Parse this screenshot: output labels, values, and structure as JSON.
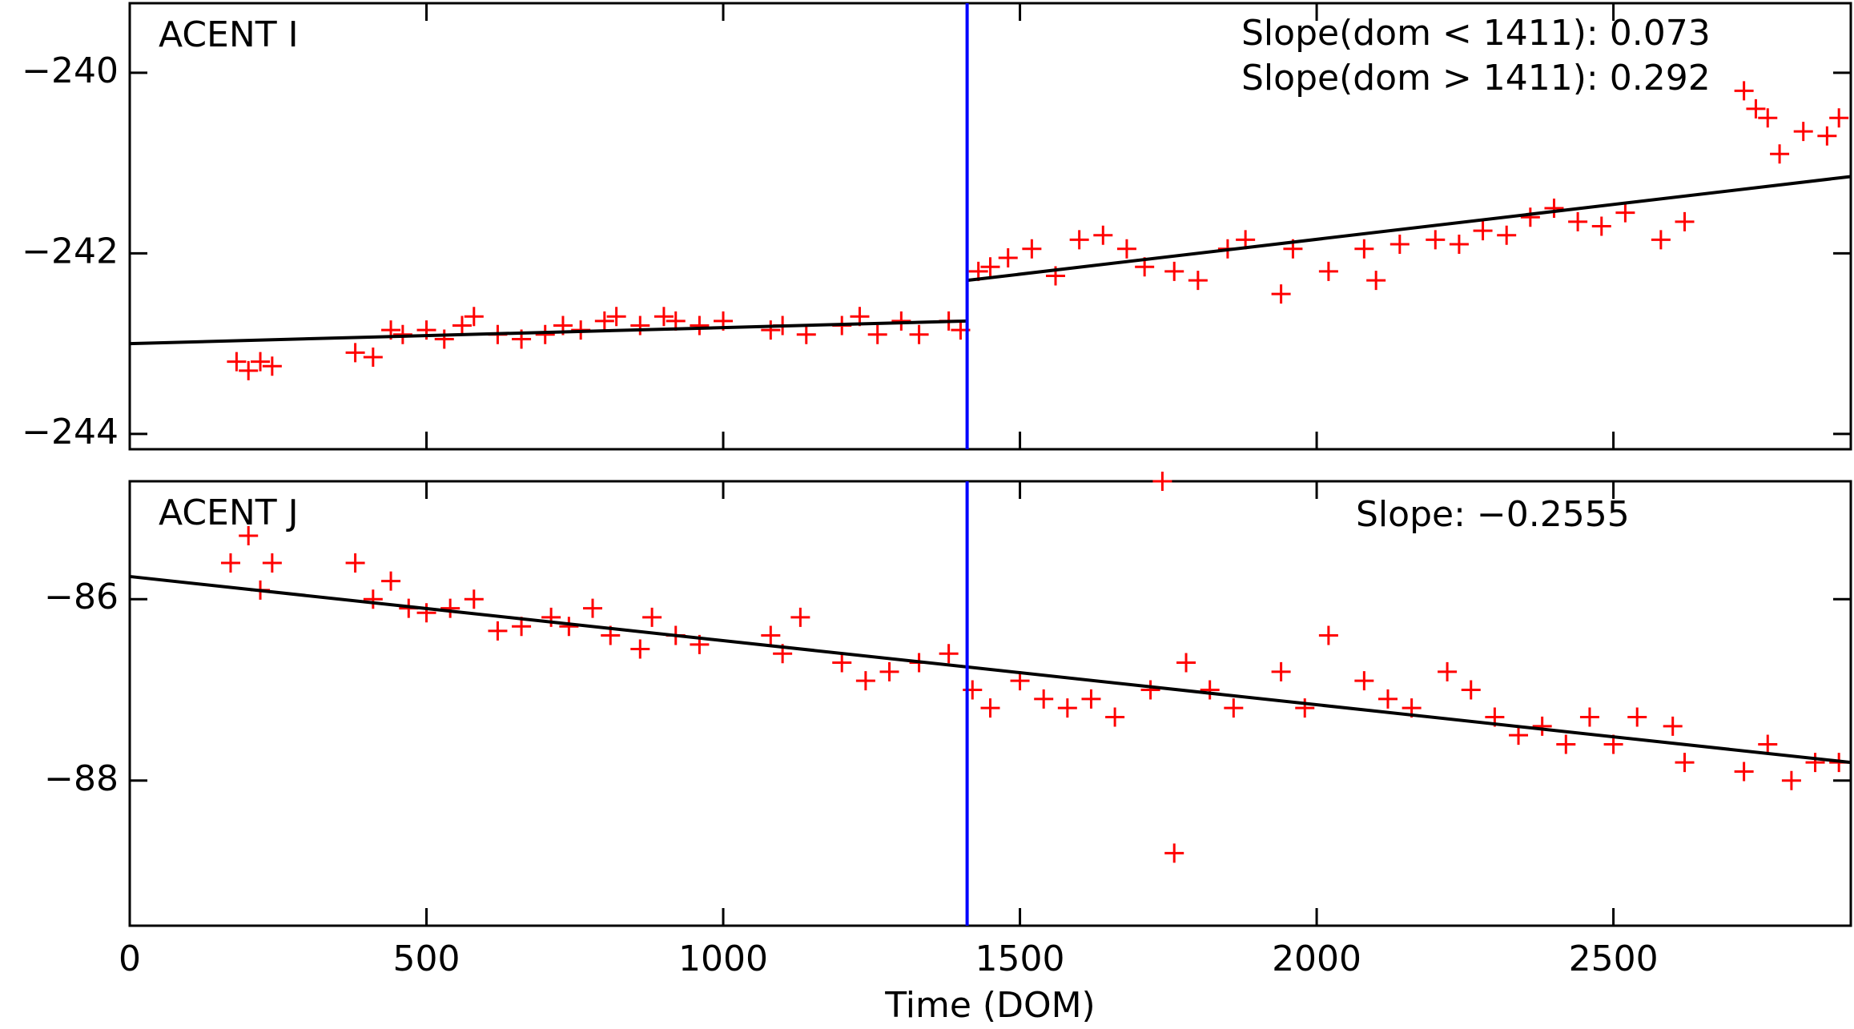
{
  "chart_data": [
    {
      "type": "scatter",
      "panel_label": "ACENT I",
      "annotations": [
        "Slope(dom < 1411): 0.073",
        "Slope(dom > 1411): 0.292"
      ],
      "x": [
        180,
        200,
        220,
        240,
        380,
        410,
        440,
        460,
        500,
        530,
        560,
        580,
        620,
        660,
        700,
        730,
        760,
        800,
        820,
        860,
        900,
        920,
        960,
        1000,
        1080,
        1100,
        1140,
        1200,
        1230,
        1260,
        1300,
        1330,
        1380,
        1400,
        1430,
        1450,
        1480,
        1520,
        1560,
        1600,
        1640,
        1680,
        1710,
        1760,
        1800,
        1850,
        1880,
        1940,
        1960,
        2020,
        2080,
        2100,
        2140,
        2200,
        2240,
        2280,
        2320,
        2360,
        2400,
        2440,
        2480,
        2520,
        2580,
        2620,
        2720,
        2740,
        2760,
        2780,
        2820,
        2860,
        2880
      ],
      "values": [
        -243.2,
        -243.3,
        -243.2,
        -243.25,
        -243.1,
        -243.15,
        -242.85,
        -242.9,
        -242.85,
        -242.95,
        -242.8,
        -242.7,
        -242.9,
        -242.95,
        -242.9,
        -242.8,
        -242.85,
        -242.75,
        -242.7,
        -242.8,
        -242.7,
        -242.75,
        -242.8,
        -242.75,
        -242.85,
        -242.8,
        -242.9,
        -242.8,
        -242.7,
        -242.9,
        -242.75,
        -242.9,
        -242.75,
        -242.85,
        -242.2,
        -242.15,
        -242.05,
        -241.95,
        -242.25,
        -241.85,
        -241.8,
        -241.95,
        -242.15,
        -242.2,
        -242.3,
        -241.95,
        -241.85,
        -242.45,
        -241.95,
        -242.2,
        -241.95,
        -242.3,
        -241.9,
        -241.85,
        -241.9,
        -241.75,
        -241.8,
        -241.6,
        -241.5,
        -241.65,
        -241.7,
        -241.55,
        -241.85,
        -241.65,
        -240.2,
        -240.4,
        -240.5,
        -240.9,
        -240.65,
        -240.7,
        -240.5
      ],
      "color": "#ff0000",
      "fits": [
        {
          "x": [
            0,
            1411
          ],
          "y": [
            -243.0,
            -242.75
          ]
        },
        {
          "x": [
            1411,
            2900
          ],
          "y": [
            -242.3,
            -241.15
          ]
        }
      ],
      "fit_color": "#000000",
      "divider": 1411,
      "divider_color": "#0000ff",
      "xlim": [
        0,
        2900
      ],
      "xticks": [
        0,
        500,
        1000,
        1500,
        2000,
        2500
      ],
      "xtick_labels": false,
      "ylim": [
        -244.17,
        -239.23
      ],
      "yticks": [
        {
          "value": -240,
          "label": "−240"
        },
        {
          "value": -242,
          "label": "−242"
        },
        {
          "value": -244,
          "label": "−244"
        }
      ]
    },
    {
      "type": "scatter",
      "panel_label": "ACENT J",
      "annotations": [
        "Slope: −0.2555"
      ],
      "x": [
        170,
        200,
        220,
        240,
        380,
        410,
        440,
        470,
        500,
        540,
        580,
        620,
        660,
        710,
        740,
        780,
        810,
        860,
        880,
        920,
        960,
        1080,
        1100,
        1130,
        1200,
        1240,
        1280,
        1330,
        1380,
        1420,
        1450,
        1500,
        1540,
        1580,
        1620,
        1660,
        1720,
        1740,
        1760,
        1780,
        1820,
        1860,
        1940,
        1980,
        2020,
        2080,
        2120,
        2160,
        2220,
        2260,
        2300,
        2340,
        2380,
        2420,
        2460,
        2500,
        2540,
        2600,
        2620,
        2720,
        2760,
        2800,
        2840,
        2880
      ],
      "values": [
        -85.6,
        -85.3,
        -85.9,
        -85.6,
        -85.6,
        -86.0,
        -85.8,
        -86.1,
        -86.15,
        -86.1,
        -86.0,
        -86.35,
        -86.3,
        -86.2,
        -86.3,
        -86.1,
        -86.4,
        -86.55,
        -86.2,
        -86.4,
        -86.5,
        -86.4,
        -86.6,
        -86.2,
        -86.7,
        -86.9,
        -86.8,
        -86.7,
        -86.6,
        -87.0,
        -87.2,
        -86.9,
        -87.1,
        -87.2,
        -87.1,
        -87.3,
        -87.0,
        -84.7,
        -88.8,
        -86.7,
        -87.0,
        -87.2,
        -86.8,
        -87.2,
        -86.4,
        -86.9,
        -87.1,
        -87.2,
        -86.8,
        -87.0,
        -87.3,
        -87.5,
        -87.4,
        -87.6,
        -87.3,
        -87.6,
        -87.3,
        -87.4,
        -87.8,
        -87.9,
        -87.6,
        -88.0,
        -87.8,
        -87.8
      ],
      "color": "#ff0000",
      "fits": [
        {
          "x": [
            0,
            2900
          ],
          "y": [
            -85.75,
            -87.8
          ]
        }
      ],
      "fit_color": "#000000",
      "divider": 1411,
      "divider_color": "#0000ff",
      "xlim": [
        0,
        2900
      ],
      "xticks": [
        0,
        500,
        1000,
        1500,
        2000,
        2500
      ],
      "xtick_labels": true,
      "xlabel": "Time (DOM)",
      "ylim": [
        -89.6,
        -84.7
      ],
      "yticks": [
        {
          "value": -86,
          "label": "−86"
        },
        {
          "value": -88,
          "label": "−88"
        }
      ]
    }
  ]
}
